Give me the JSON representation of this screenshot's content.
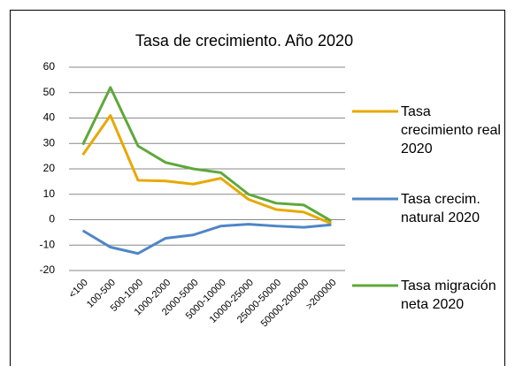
{
  "chart_data": {
    "type": "line",
    "title": "Tasa de crecimiento. Año 2020",
    "categories": [
      "<100",
      "100-500",
      "500-1000",
      "1000-2000",
      "2000-5000",
      "5000-10000",
      "10000-25000",
      "25000-50000",
      "50000-200000",
      ">200000"
    ],
    "series": [
      {
        "name": "Tasa crecimiento real 2020",
        "color": "#E8A800",
        "values": [
          25.5,
          41,
          15.5,
          15.2,
          14,
          16.3,
          8,
          4,
          3,
          -1.5
        ]
      },
      {
        "name": "Tasa crecim. natural 2020",
        "color": "#4F86C6",
        "values": [
          -4.3,
          -10.8,
          -13.3,
          -7.3,
          -6,
          -2.5,
          -1.8,
          -2.5,
          -3,
          -2
        ]
      },
      {
        "name": "Tasa migración neta 2020",
        "color": "#5EA83A",
        "values": [
          29.5,
          52,
          29,
          22.5,
          20,
          18.5,
          10,
          6.5,
          5.8,
          -0.5
        ]
      }
    ],
    "ylim": [
      -20,
      60
    ],
    "yticks": [
      -20,
      -10,
      0,
      10,
      20,
      30,
      40,
      50,
      60
    ],
    "grid": true,
    "legend": "right"
  }
}
